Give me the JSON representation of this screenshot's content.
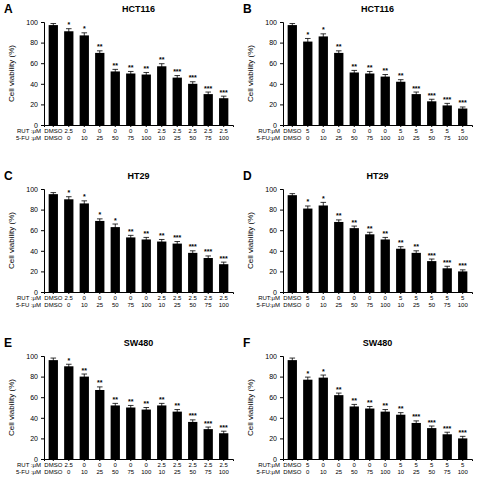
{
  "chart_data": [
    {
      "type": "bar",
      "panel": "A",
      "title": "HCT116",
      "y_label": "Cell viability (%)",
      "category_titles": [
        "RUT :μM",
        "5-FU :μM"
      ],
      "categories": [
        "DMSO",
        "2.5",
        "0",
        "0",
        "0",
        "0",
        "0",
        "2.5",
        "2.5",
        "2.5",
        "2.5",
        "2.5"
      ],
      "categories_2": [
        "DMSO",
        "0",
        "10",
        "25",
        "50",
        "75",
        "100",
        "10",
        "25",
        "50",
        "75",
        "100"
      ],
      "values": [
        97,
        91,
        87,
        70,
        52,
        50,
        49,
        57,
        46,
        40,
        30,
        26
      ],
      "errors": [
        1.5,
        2.5,
        2.5,
        2,
        2,
        2,
        2,
        2.5,
        2,
        2,
        2,
        2
      ],
      "annotations": [
        null,
        "*",
        "*",
        "**",
        "**",
        "**",
        "**",
        "**",
        "***",
        "***",
        "***",
        "***"
      ],
      "color": "#000000",
      "ylim": [
        0,
        100
      ],
      "yticks": [
        0,
        20,
        40,
        60,
        80,
        100
      ]
    },
    {
      "type": "bar",
      "panel": "B",
      "title": "HCT116",
      "y_label": "Cell viability (%)",
      "category_titles": [
        "RUT:μM",
        "5-FU:μM"
      ],
      "categories": [
        "DMSO",
        "5",
        "0",
        "0",
        "0",
        "0",
        "0",
        "5",
        "5",
        "5",
        "5",
        "5"
      ],
      "categories_2": [
        "DMSO",
        "0",
        "10",
        "25",
        "50",
        "75",
        "100",
        "10",
        "25",
        "50",
        "75",
        "100"
      ],
      "values": [
        97,
        81,
        86,
        70,
        51,
        50,
        47,
        42,
        30,
        23,
        19,
        16
      ],
      "errors": [
        1.5,
        3,
        2.5,
        2,
        2,
        2,
        2,
        2,
        2,
        2,
        2,
        1.5
      ],
      "annotations": [
        null,
        "*",
        "*",
        "**",
        "**",
        "**",
        "**",
        "**",
        "***",
        "***",
        "***",
        "***"
      ],
      "color": "#000000",
      "ylim": [
        0,
        100
      ],
      "yticks": [
        0,
        20,
        40,
        60,
        80,
        100
      ]
    },
    {
      "type": "bar",
      "panel": "C",
      "title": "HT29",
      "y_label": "Cell viability (%)",
      "category_titles": [
        "RUT :μM",
        "5-FU :μM"
      ],
      "categories": [
        "DMSO",
        "2.5",
        "0",
        "0",
        "0",
        "0",
        "0",
        "2.5",
        "2.5",
        "2.5",
        "2.5",
        "2.5"
      ],
      "categories_2": [
        "DMSO",
        "0",
        "10",
        "25",
        "50",
        "75",
        "100",
        "10",
        "25",
        "50",
        "75",
        "100"
      ],
      "values": [
        95,
        90,
        86,
        69,
        63,
        53,
        51,
        49,
        47,
        38,
        33,
        27
      ],
      "errors": [
        1.5,
        2.5,
        2.5,
        2,
        3,
        2,
        2,
        2,
        2,
        2,
        2,
        2
      ],
      "annotations": [
        null,
        "*",
        "*",
        "*",
        "*",
        "**",
        "**",
        "**",
        "***",
        "***",
        "***",
        "***"
      ],
      "color": "#000000",
      "ylim": [
        0,
        100
      ],
      "yticks": [
        0,
        20,
        40,
        60,
        80,
        100
      ]
    },
    {
      "type": "bar",
      "panel": "D",
      "title": "HT29",
      "y_label": "Cell viability (%)",
      "category_titles": [
        "RUT:μM",
        "5-FU:μM"
      ],
      "categories": [
        "DMSO",
        "5",
        "0",
        "0",
        "0",
        "0",
        "0",
        "5",
        "5",
        "5",
        "5",
        "5"
      ],
      "categories_2": [
        "DMSO",
        "0",
        "10",
        "25",
        "50",
        "75",
        "100",
        "10",
        "25",
        "50",
        "75",
        "100"
      ],
      "values": [
        94,
        81,
        84,
        68,
        62,
        56,
        51,
        42,
        38,
        30,
        23,
        20
      ],
      "errors": [
        1.5,
        2.5,
        3,
        2,
        2,
        2,
        2,
        2,
        2,
        2,
        2,
        1.5
      ],
      "annotations": [
        null,
        "*",
        "*",
        "**",
        "**",
        "**",
        "**",
        "**",
        "**",
        "***",
        "***",
        "***"
      ],
      "color": "#000000",
      "ylim": [
        0,
        100
      ],
      "yticks": [
        0,
        20,
        40,
        60,
        80,
        100
      ]
    },
    {
      "type": "bar",
      "panel": "E",
      "title": "SW480",
      "y_label": "Cell viability (%)",
      "category_titles": [
        "RUT :μM",
        "5-FU :μM"
      ],
      "categories": [
        "DMSO",
        "2.5",
        "0",
        "0",
        "0",
        "0",
        "0",
        "2.5",
        "2.5",
        "2.5",
        "2.5",
        "2.5"
      ],
      "categories_2": [
        "DMSO",
        "0",
        "10",
        "25",
        "50",
        "75",
        "100",
        "10",
        "25",
        "50",
        "75",
        "100"
      ],
      "values": [
        96,
        90,
        80,
        67,
        52,
        50,
        48,
        52,
        46,
        36,
        29,
        25
      ],
      "errors": [
        2,
        2,
        2.5,
        3,
        2,
        2,
        2,
        2,
        2,
        2,
        2,
        2
      ],
      "annotations": [
        null,
        "*",
        "**",
        "**",
        "**",
        "**",
        "**",
        "**",
        "**",
        "***",
        "***",
        "***"
      ],
      "color": "#000000",
      "ylim": [
        0,
        100
      ],
      "yticks": [
        0,
        20,
        40,
        60,
        80,
        100
      ]
    },
    {
      "type": "bar",
      "panel": "F",
      "title": "SW480",
      "y_label": "Cell viability (%)",
      "category_titles": [
        "RUT:μM",
        "5-FU:μM"
      ],
      "categories": [
        "DMSO",
        "5",
        "0",
        "0",
        "0",
        "0",
        "0",
        "5",
        "5",
        "5",
        "5",
        "5"
      ],
      "categories_2": [
        "DMSO",
        "0",
        "10",
        "25",
        "50",
        "75",
        "100",
        "10",
        "25",
        "50",
        "75",
        "100"
      ],
      "values": [
        96,
        77,
        79,
        62,
        51,
        49,
        46,
        43,
        35,
        30,
        24,
        20
      ],
      "errors": [
        2,
        2.5,
        2.5,
        2,
        2,
        2,
        2,
        2,
        2,
        2,
        2,
        2
      ],
      "annotations": [
        null,
        "*",
        "*",
        "**",
        "**",
        "**",
        "**",
        "**",
        "***",
        "***",
        "***",
        "***"
      ],
      "color": "#000000",
      "ylim": [
        0,
        100
      ],
      "yticks": [
        0,
        20,
        40,
        60,
        80,
        100
      ]
    }
  ]
}
